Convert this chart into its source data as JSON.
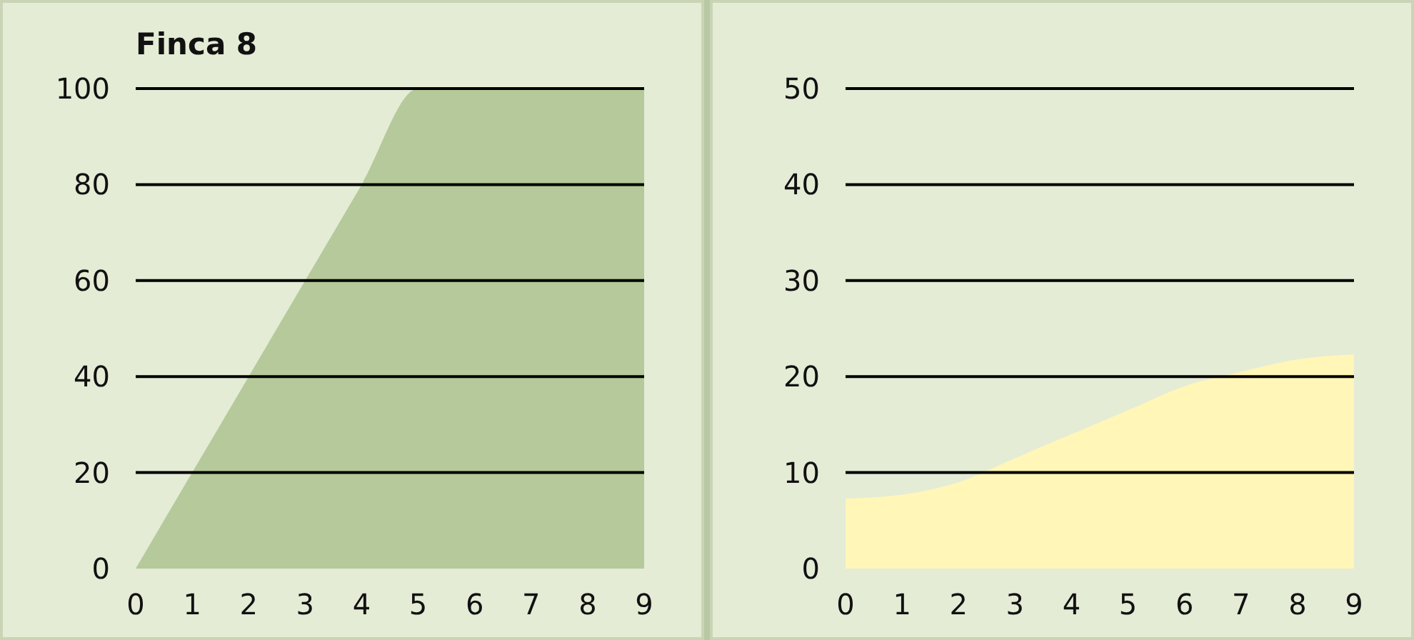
{
  "chart_data": [
    {
      "type": "area",
      "title": "Finca 8",
      "x": [
        0,
        1,
        2,
        3,
        4,
        5,
        6,
        7,
        8,
        9
      ],
      "xlim": [
        0,
        9
      ],
      "xticks": [
        0,
        1,
        2,
        3,
        4,
        5,
        6,
        7,
        8,
        9
      ],
      "ylim": [
        0,
        100
      ],
      "yticks": [
        0,
        20,
        40,
        60,
        80,
        100
      ],
      "grid": "y",
      "series": [
        {
          "color": "#b5c99a",
          "values": [
            0,
            20,
            40,
            60,
            80,
            100,
            100,
            100,
            100,
            100
          ]
        }
      ]
    },
    {
      "type": "area",
      "x": [
        0,
        1,
        2,
        3,
        4,
        5,
        6,
        7,
        8,
        9
      ],
      "xlim": [
        0,
        9
      ],
      "xticks": [
        0,
        1,
        2,
        3,
        4,
        5,
        6,
        7,
        8,
        9
      ],
      "ylim": [
        0,
        50
      ],
      "yticks": [
        0,
        10,
        20,
        30,
        40,
        50
      ],
      "grid": "y",
      "series": [
        {
          "color": "#fff6b8",
          "values": [
            7.3,
            7.7,
            9,
            11.5,
            14,
            16.5,
            19,
            20.5,
            21.8,
            22.3
          ]
        }
      ]
    }
  ]
}
